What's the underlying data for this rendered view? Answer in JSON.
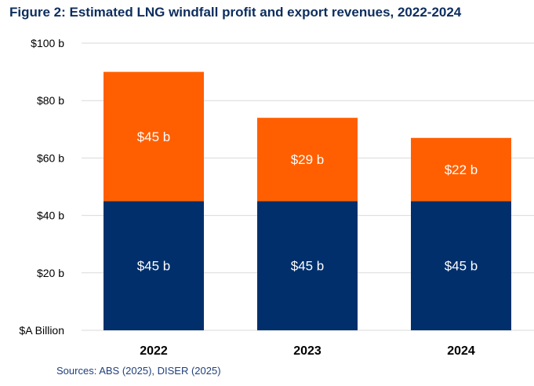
{
  "chart_data": {
    "type": "bar",
    "stacked": true,
    "title": "Figure 2: Estimated LNG windfall profit and export revenues, 2022-2024",
    "source": "Sources: ABS (2025), DISER (2025)",
    "categories": [
      "2022",
      "2023",
      "2024"
    ],
    "series": [
      {
        "values": [
          45,
          45,
          45
        ],
        "labels": [
          "$45 b",
          "$45 b",
          "$45 b"
        ],
        "color": "#002f6c"
      },
      {
        "values": [
          45,
          29,
          22
        ],
        "labels": [
          "$45 b",
          "$29 b",
          "$22 b"
        ],
        "color": "#ff5f00"
      }
    ],
    "ylim": [
      0,
      100
    ],
    "yticks": [
      0,
      20,
      40,
      60,
      80,
      100
    ],
    "ytick_labels": [
      "$A Billion",
      "$20 b",
      "$40 b",
      "$60 b",
      "$80 b",
      "$100 b"
    ],
    "grid": true,
    "colors": {
      "title": "#0d2d5e",
      "grid": "#d9d9d9",
      "bar_label": "#ffffff"
    }
  }
}
